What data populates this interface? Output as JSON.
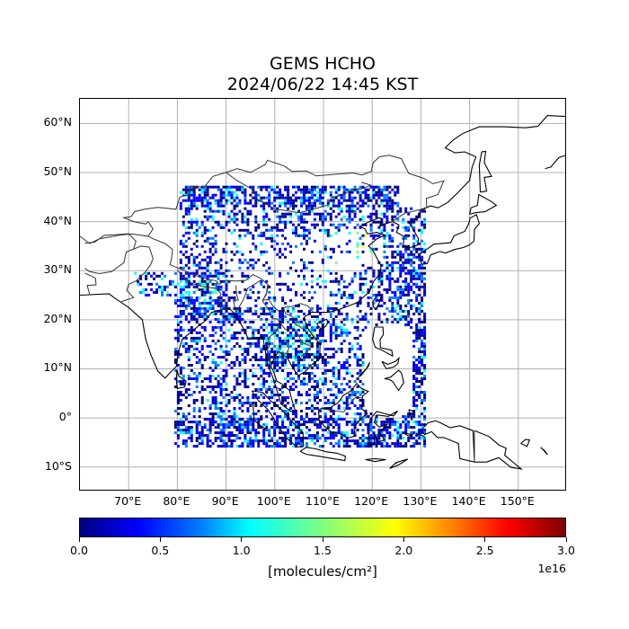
{
  "title": "GEMS HCHO",
  "subtitle": "2024/06/22 14:45 KST",
  "lat_ticks": [
    {
      "value": 60,
      "label": "60°N"
    },
    {
      "value": 50,
      "label": "50°N"
    },
    {
      "value": 40,
      "label": "40°N"
    },
    {
      "value": 30,
      "label": "30°N"
    },
    {
      "value": 20,
      "label": "20°N"
    },
    {
      "value": 10,
      "label": "10°N"
    },
    {
      "value": 0,
      "label": "0°"
    },
    {
      "value": -10,
      "label": "10°S"
    }
  ],
  "lon_ticks": [
    {
      "value": 70,
      "label": "70°E"
    },
    {
      "value": 80,
      "label": "80°E"
    },
    {
      "value": 90,
      "label": "90°E"
    },
    {
      "value": 100,
      "label": "100°E"
    },
    {
      "value": 110,
      "label": "110°E"
    },
    {
      "value": 120,
      "label": "120°E"
    },
    {
      "value": 130,
      "label": "130°E"
    },
    {
      "value": 140,
      "label": "140°E"
    },
    {
      "value": 150,
      "label": "150°E"
    }
  ],
  "map_extent": {
    "lon": [
      60,
      160
    ],
    "lat": [
      -15,
      65
    ]
  },
  "colorbar": {
    "ticks": [
      "0.0",
      "0.5",
      "1.0",
      "1.5",
      "2.0",
      "2.5",
      "3.0"
    ],
    "range": [
      0.0,
      3.0
    ],
    "exponent": "1e16",
    "label": "[molecules/cm²]",
    "colormap": "jet"
  }
}
